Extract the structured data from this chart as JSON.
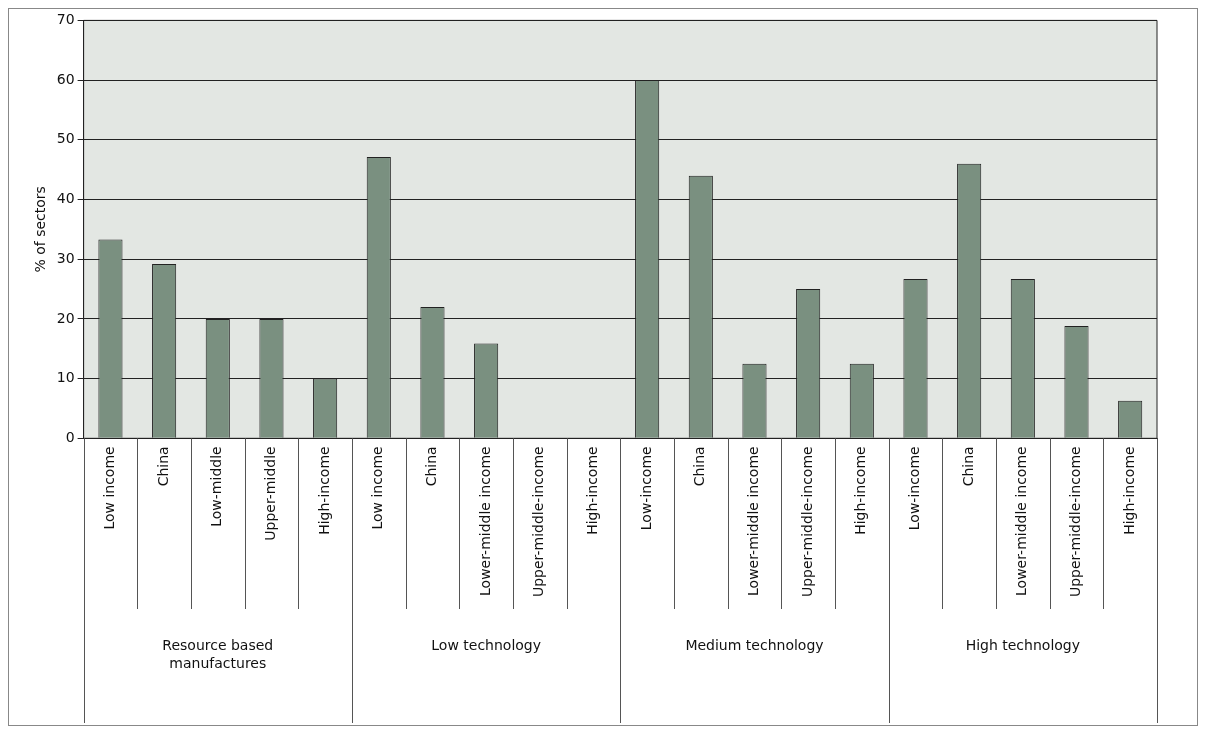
{
  "chart_data": {
    "type": "bar",
    "ylabel": "% of sectors",
    "categories": [
      "Low income",
      "China",
      "Low-middle",
      "Upper-middle",
      "High-income",
      "Low income",
      "China",
      "Lower-middle income",
      "Upper-middle-income",
      "High-income",
      "Low-income",
      "China",
      "Lower-middle income",
      "Upper-middle-income",
      "High-income",
      "Low-income",
      "China",
      "Lower-middle income",
      "Upper-middle-income",
      "High-income"
    ],
    "values": [
      33.3,
      29.2,
      20,
      20,
      10,
      47.1,
      22,
      15.9,
      0,
      0,
      60,
      44,
      12.5,
      25,
      12.5,
      26.7,
      46,
      26.7,
      18.8,
      6.3
    ],
    "color": "#7a9080",
    "ylim": [
      0,
      70
    ],
    "yticks": [
      0,
      10,
      20,
      30,
      40,
      50,
      60,
      70
    ],
    "grid": "y",
    "legend": false,
    "annotations": [
      "Resource based manufactures",
      "Low technology",
      "Medium technology",
      "High technology"
    ]
  }
}
